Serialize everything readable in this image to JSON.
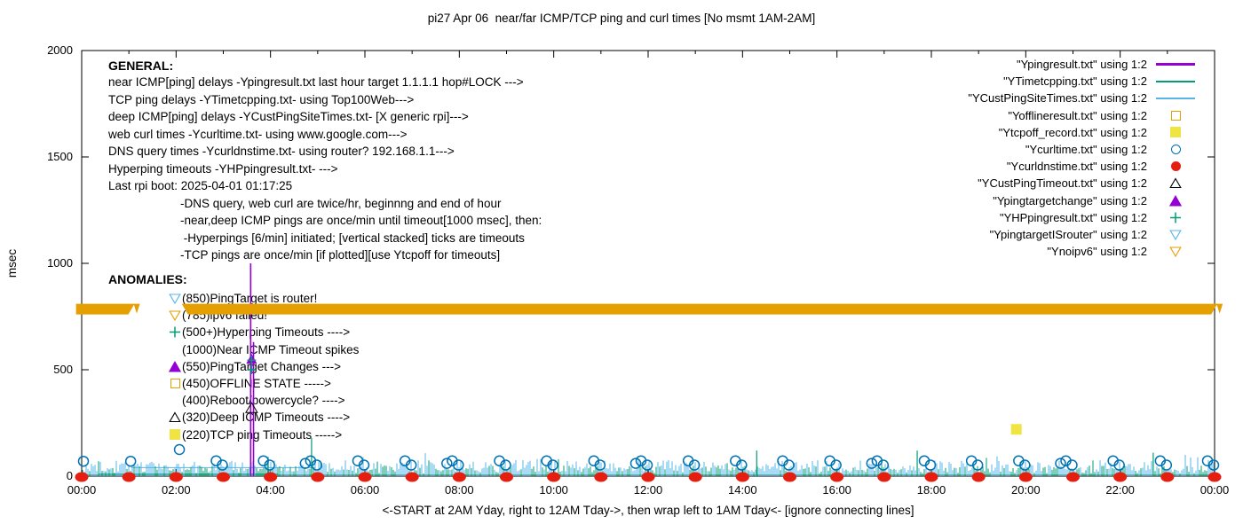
{
  "title": "pi27 Apr 06  near/far ICMP/TCP ping and curl times [No msmt 1AM-2AM]",
  "axes": {
    "ylabel": "msec",
    "xlabel": "<-START at 2AM Yday, right to 12AM Tday->, then wrap left to 1AM Tday<- [ignore connecting lines]",
    "y_ticks": [
      "0",
      "500",
      "1000",
      "1500",
      "2000"
    ],
    "x_ticks": [
      "00:00",
      "02:00",
      "04:00",
      "06:00",
      "08:00",
      "10:00",
      "12:00",
      "14:00",
      "16:00",
      "18:00",
      "20:00",
      "22:00",
      "00:00"
    ]
  },
  "legend": {
    "items": [
      {
        "label": "\"Ypingresult.txt\" using 1:2",
        "swatch": "line",
        "color": "#9400d3"
      },
      {
        "label": "\"YTimetcpping.txt\" using 1:2",
        "swatch": "line",
        "color": "#009e73"
      },
      {
        "label": "\"YCustPingSiteTimes.txt\" using 1:2",
        "swatch": "line",
        "color": "#56b4e9"
      },
      {
        "label": "\"Yofflineresult.txt\" using 1:2",
        "swatch": "square-open",
        "color": "#e69f00"
      },
      {
        "label": "\"Ytcpoff_record.txt\" using 1:2",
        "swatch": "square-filled",
        "color": "#f0e442"
      },
      {
        "label": "\"Ycurltime.txt\" using 1:2",
        "swatch": "circle-open",
        "color": "#0072b2"
      },
      {
        "label": "\"Ycurldnstime.txt\" using 1:2",
        "swatch": "circle-filled",
        "color": "#e51e10"
      },
      {
        "label": "\"YCustPingTimeout.txt\" using 1:2",
        "swatch": "tri-up-open",
        "color": "#000000"
      },
      {
        "label": "\"Ypingtargetchange\" using 1:2",
        "swatch": "tri-up-filled",
        "color": "#9400d3"
      },
      {
        "label": "\"YHPpingresult.txt\" using 1:2",
        "swatch": "plus",
        "color": "#009e73"
      },
      {
        "label": "\"YpingtargetISrouter\" using 1:2",
        "swatch": "tri-down-open",
        "color": "#56b4e9"
      },
      {
        "label": "\"Ynoipv6\" using 1:2",
        "swatch": "tri-down-open",
        "color": "#e69f00"
      }
    ]
  },
  "general": {
    "heading": "GENERAL:",
    "lines": [
      "near ICMP[ping] delays -Ypingresult.txt last hour target 1.1.1.1 hop#LOCK --->",
      "TCP ping delays -YTimetcpping.txt- using Top100Web--->",
      "deep ICMP[ping] delays -YCustPingSiteTimes.txt- [X generic rpi]--->",
      "web curl times -Ycurltime.txt- using www.google.com--->",
      "DNS query times -Ycurldnstime.txt- using router? 192.168.1.1--->",
      "Hyperping timeouts -YHPpingresult.txt- --->",
      "Last rpi boot: 2025-04-01 01:17:25"
    ],
    "notes": [
      "-DNS query, web curl are twice/hr, beginnng and end of hour",
      "-near,deep ICMP pings are once/min until timeout[1000 msec], then:",
      " -Hyperpings [6/min] initiated; [vertical stacked] ticks are timeouts",
      "-TCP pings are once/min [if plotted][use Ytcpoff for timeouts]"
    ]
  },
  "anomalies": {
    "heading": "ANOMALIES:",
    "items": [
      {
        "marker": "tri-down-open",
        "color": "#56b4e9",
        "text": "(850)PingTarget is router!"
      },
      {
        "marker": "tri-down-open",
        "color": "#e69f00",
        "text": "(785)ipv6 failed!"
      },
      {
        "marker": "plus",
        "color": "#009e73",
        "text": "(500+)Hyperping Timeouts ---->"
      },
      {
        "marker": "none",
        "color": "",
        "text": "(1000)Near ICMP Timeout spikes"
      },
      {
        "marker": "tri-up-filled",
        "color": "#9400d3",
        "text": "(550)PingTarget Changes --->"
      },
      {
        "marker": "square-open",
        "color": "#e69f00",
        "text": "(450)OFFLINE STATE ----->"
      },
      {
        "marker": "none",
        "color": "",
        "text": "(400)Reboot/powercycle? ---->"
      },
      {
        "marker": "tri-up-open",
        "color": "#000000",
        "text": "(320)Deep ICMP Timeouts ---->"
      },
      {
        "marker": "square-filled",
        "color": "#f0e442",
        "text": "(220)TCP ping Timeouts ----->"
      }
    ]
  },
  "chart_data": {
    "type": "line",
    "title": "pi27 Apr 06  near/far ICMP/TCP ping and curl times [No msmt 1AM-2AM]",
    "xlabel": "<-START at 2AM Yday, right to 12AM Tday->, then wrap left to 1AM Tday<- [ignore connecting lines]",
    "ylabel": "msec",
    "x_range_hours": [
      0,
      24
    ],
    "ylim": [
      0,
      2000
    ],
    "y_tick_step": 500,
    "x_tick_step_hours": 2,
    "grid": false,
    "legend_position": "top-right",
    "no_measurement_gap_hours": [
      1.1,
      2.1
    ],
    "series": [
      {
        "name": "Ypingresult.txt",
        "style": "line",
        "color": "#9400d3",
        "role": "near ICMP ping delay",
        "baseline_msec": [
          0,
          30
        ],
        "spikes": [
          {
            "hour": 3.58,
            "msec": 1000
          },
          {
            "hour": 3.64,
            "msec": 630
          }
        ]
      },
      {
        "name": "YTimetcpping.txt",
        "style": "line",
        "color": "#009e73",
        "role": "TCP ping delay",
        "baseline_msec": [
          0,
          40
        ],
        "spikes": [
          {
            "hour": 3.95,
            "msec": 90
          },
          {
            "hour": 4.87,
            "msec": 180
          },
          {
            "hour": 14.3,
            "msec": 120
          },
          {
            "hour": 17.7,
            "msec": 120
          },
          {
            "hour": 22.7,
            "msec": 110
          }
        ],
        "connect_line": {
          "msec": 10,
          "from_hour": 0.35,
          "to_hour": 4.15
        }
      },
      {
        "name": "YCustPingSiteTimes.txt",
        "style": "line",
        "color": "#56b4e9",
        "role": "deep ICMP ping delay",
        "baseline_msec": [
          0,
          80
        ],
        "connect_line": {
          "msec": 40,
          "from_hour": 1.05,
          "to_hour": 4.95
        }
      },
      {
        "name": "Yofflineresult.txt",
        "style": "square-open",
        "color": "#e69f00",
        "points": []
      },
      {
        "name": "Ytcpoff_record.txt",
        "style": "square-filled",
        "color": "#f0e442",
        "points": [
          {
            "hour": 19.8,
            "msec": 220
          }
        ]
      },
      {
        "name": "Ycurltime.txt",
        "style": "circle-open",
        "color": "#0072b2",
        "role": "web curl time",
        "pair_hours": [
          3,
          4,
          5,
          6,
          7,
          8,
          9,
          10,
          11,
          12,
          13,
          14,
          15,
          16,
          17,
          18,
          19,
          20,
          21,
          22,
          23,
          24
        ],
        "triple_hours": [
          5,
          8,
          12,
          17,
          21
        ],
        "single_hours": [
          0,
          1
        ],
        "high_points": [
          {
            "hour": 2.07,
            "msec": 125
          }
        ],
        "pair_msec": [
          52,
          72
        ]
      },
      {
        "name": "Ycurldnstime.txt",
        "style": "circle-filled",
        "color": "#e51e10",
        "role": "DNS query time",
        "hours": [
          0,
          1,
          2,
          3,
          4,
          5,
          6,
          7,
          8,
          9,
          10,
          11,
          12,
          13,
          14,
          15,
          16,
          17,
          18,
          19,
          20,
          21,
          22,
          23,
          24
        ],
        "msec": 0
      },
      {
        "name": "YCustPingTimeout.txt",
        "style": "tri-up-open",
        "color": "#000000",
        "points": [
          {
            "hour": 3.6,
            "msec": 320
          }
        ]
      },
      {
        "name": "Ypingtargetchange",
        "style": "tri-up-filled",
        "color": "#9400d3",
        "points": [
          {
            "hour": 3.6,
            "msec": 550
          }
        ]
      },
      {
        "name": "YHPpingresult.txt",
        "style": "plus",
        "color": "#009e73",
        "points": [
          {
            "hour": 3.6,
            "msec": 500
          },
          {
            "hour": 3.6,
            "msec": 545
          }
        ]
      },
      {
        "name": "YpingtargetISrouter",
        "style": "tri-down-open",
        "color": "#56b4e9",
        "points": []
      },
      {
        "name": "Ynoipv6",
        "style": "tri-down-open",
        "color": "#e69f00",
        "band_msec": 785,
        "segments_hours": [
          [
            -0.12,
            1.12
          ],
          [
            2.12,
            24.06
          ]
        ]
      }
    ]
  }
}
